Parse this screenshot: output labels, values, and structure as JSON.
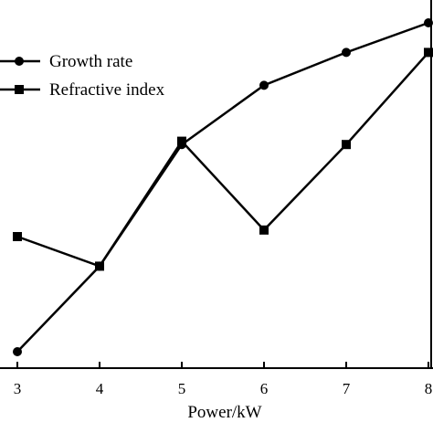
{
  "chart_data": {
    "type": "line",
    "xlabel": "Power/kW",
    "ylabel": "",
    "x": [
      3,
      4,
      5,
      6,
      7,
      8
    ],
    "xlim": [
      3,
      8
    ],
    "x_ticks": [
      "3",
      "4",
      "5",
      "6",
      "7",
      "8"
    ],
    "ylim": [
      0,
      100
    ],
    "grid": false,
    "legend_position": "top-left",
    "series": [
      {
        "name": "Growth rate",
        "marker": "circle",
        "color": "#000000",
        "values": [
          5,
          31,
          68,
          86,
          96,
          105
        ]
      },
      {
        "name": "Refractive index",
        "marker": "square",
        "color": "#000000",
        "values": [
          40,
          31,
          69,
          42,
          68,
          96
        ]
      }
    ]
  }
}
